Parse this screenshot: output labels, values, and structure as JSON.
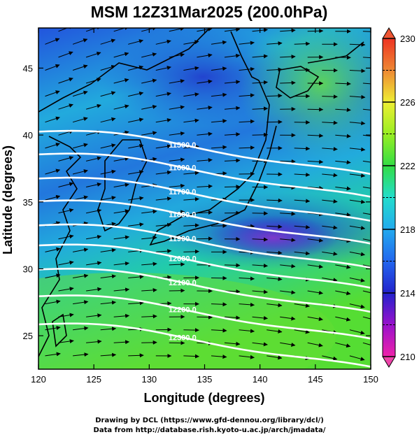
{
  "title": "MSM 12Z31Mar2025 (200.0hPa)",
  "chart_data": {
    "type": "heatmap",
    "title": "MSM 12Z31Mar2025 (200.0hPa)",
    "xlabel": "Longitude (degrees)",
    "ylabel": "Latitude  (degrees)",
    "xlim": [
      120,
      150
    ],
    "ylim": [
      22.5,
      48
    ],
    "xticks": [
      "120",
      "125",
      "130",
      "135",
      "140",
      "145",
      "150"
    ],
    "yticks": [
      "25",
      "30",
      "35",
      "40",
      "45"
    ],
    "colorbar": {
      "min": 210,
      "max": 230,
      "tick_labels": [
        "230",
        "226",
        "222",
        "218",
        "214",
        "210"
      ],
      "colors": [
        "#ee22aa",
        "#9911cc",
        "#2222cc",
        "#2266ee",
        "#22aaee",
        "#22ddcc",
        "#33dd44",
        "#99ee22",
        "#eeee33",
        "#ee8833",
        "#ee3322"
      ]
    },
    "height_contours": [
      {
        "label": "11500.0",
        "lat_at_130": 39.6
      },
      {
        "label": "11600.0",
        "lat_at_130": 37.9
      },
      {
        "label": "11700.0",
        "lat_at_130": 36.1
      },
      {
        "label": "11800.0",
        "lat_at_130": 34.4
      },
      {
        "label": "11900.0",
        "lat_at_130": 32.6
      },
      {
        "label": "12000.0",
        "lat_at_130": 31.1
      },
      {
        "label": "12100.0",
        "lat_at_130": 29.3
      },
      {
        "label": "12200.0",
        "lat_at_130": 27.3
      },
      {
        "label": "12300.0",
        "lat_at_130": 25.2
      }
    ]
  },
  "credits": {
    "line1": "Drawing by DCL (https://www.gfd-dennou.org/library/dcl/)",
    "line2": "Data from http://database.rish.kyoto-u.ac.jp/arch/jmadata/"
  }
}
